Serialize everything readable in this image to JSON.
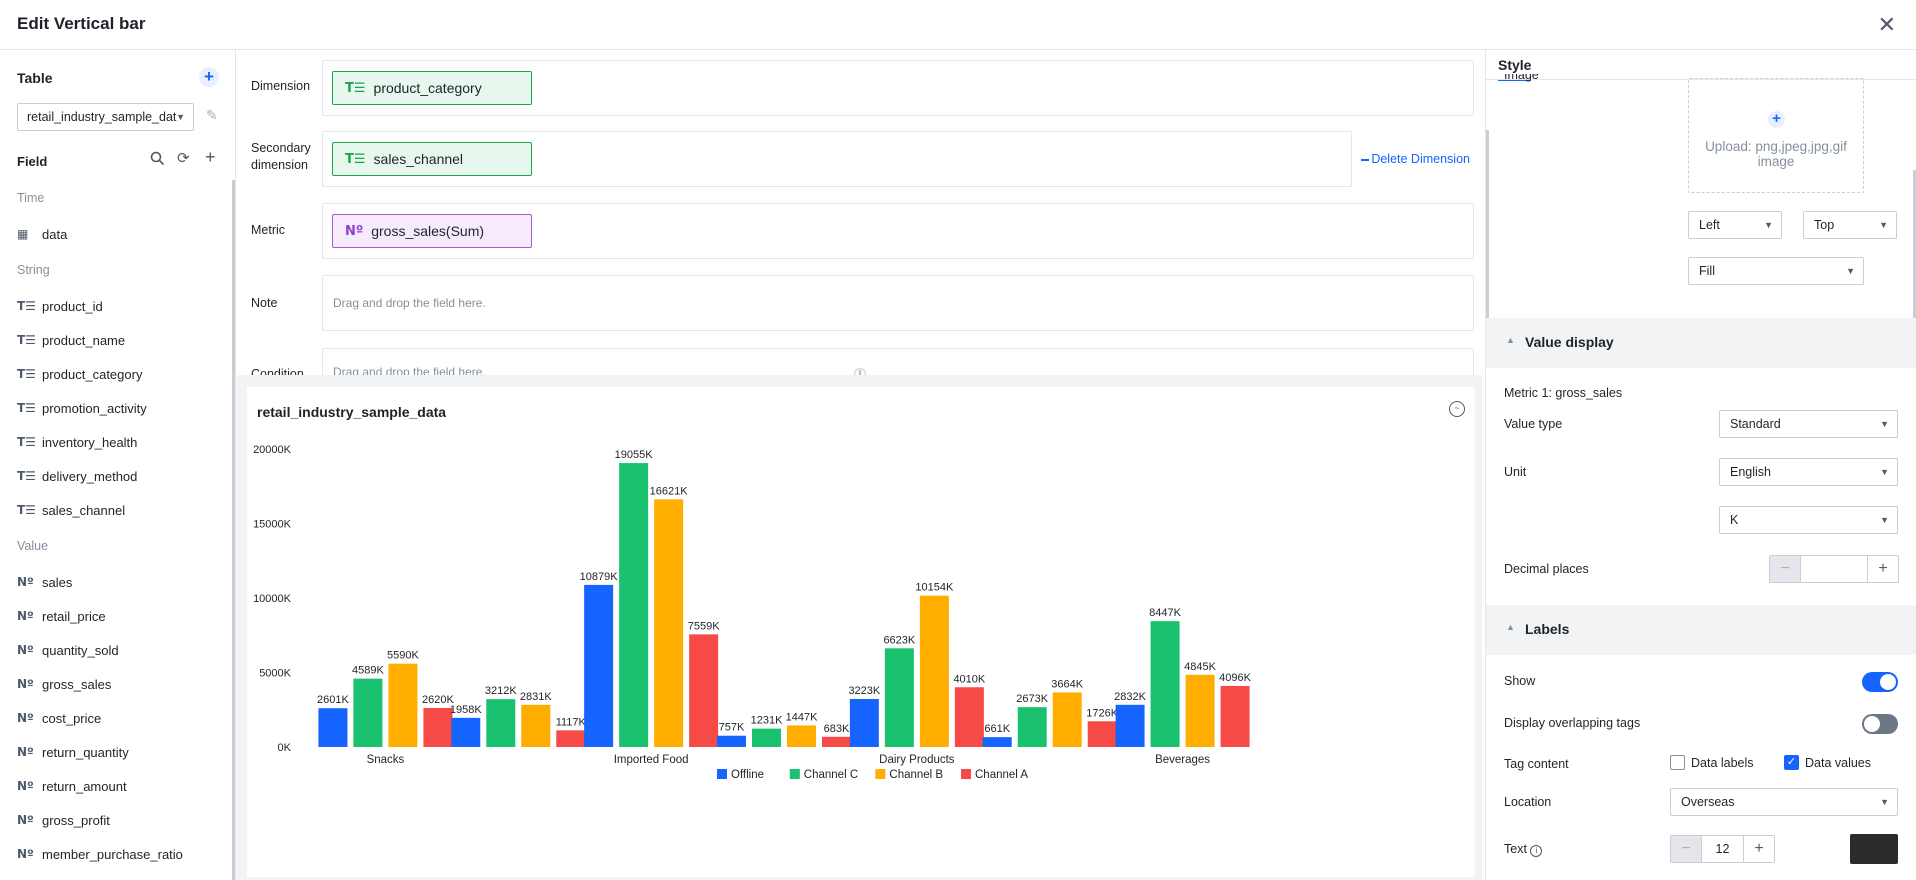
{
  "header": {
    "title": "Edit Vertical bar",
    "close_icon": "close-icon"
  },
  "left": {
    "table_title": "Table",
    "table_select": "retail_industry_sample_dat",
    "field_title": "Field",
    "groups": {
      "time": "Time",
      "string": "String",
      "value": "Value"
    },
    "time_fields": [
      "data"
    ],
    "string_fields": [
      "product_id",
      "product_name",
      "product_category",
      "promotion_activity",
      "inventory_health",
      "delivery_method",
      "sales_channel"
    ],
    "value_fields": [
      "sales",
      "retail_price",
      "quantity_sold",
      "gross_sales",
      "cost_price",
      "return_quantity",
      "return_amount",
      "gross_profit",
      "member_purchase_ratio"
    ],
    "string_icon": "T☰",
    "value_icon": "Nº"
  },
  "config": {
    "dimension_label": "Dimension",
    "dimension_value": "product_category",
    "secondary_label_1": "Secondary",
    "secondary_label_2": "dimension",
    "secondary_value": "sales_channel",
    "delete_dimension": "Delete Dimension",
    "metric_label": "Metric",
    "metric_value": "gross_sales(Sum)",
    "note_label": "Note",
    "drop_placeholder": "Drag and drop the field here.",
    "condition_label": "Condition"
  },
  "chart_data": {
    "type": "bar",
    "title": "retail_industry_sample_data",
    "categories": [
      "Snacks",
      "",
      "Imported Food",
      "",
      "Dairy Products",
      "",
      "Beverages"
    ],
    "series": [
      {
        "name": "Offline",
        "color": "#1664ff",
        "values": [
          2601,
          1958,
          10879,
          757,
          3223,
          661,
          2832
        ]
      },
      {
        "name": "Channel C",
        "color": "#1ac26f",
        "values": [
          4589,
          3212,
          19055,
          1231,
          6623,
          2673,
          8447
        ]
      },
      {
        "name": "Channel B",
        "color": "#ffae00",
        "values": [
          5590,
          2831,
          16621,
          1447,
          10154,
          3664,
          4845
        ]
      },
      {
        "name": "Channel A",
        "color": "#f54a45",
        "values": [
          2620,
          1117,
          7559,
          683,
          4010,
          1726,
          4096
        ]
      }
    ],
    "value_labels": [
      [
        "2601K",
        "1958K",
        "10879K",
        "757K",
        "3223K",
        "661K",
        "2832K"
      ],
      [
        "4589K",
        "3212K",
        "19055K",
        "1231K",
        "6623K",
        "2673K",
        "8447K"
      ],
      [
        "5590K",
        "2831K",
        "16621K",
        "1447K",
        "10154K",
        "3664K",
        "4845K"
      ],
      [
        "2620K",
        "1117K",
        "7559K",
        "683K",
        "4010K",
        "1726K",
        "4096K"
      ]
    ],
    "yticks": [
      "0K",
      "5000K",
      "10000K",
      "15000K",
      "20000K"
    ],
    "ylim": [
      0,
      20000
    ],
    "legend_position": "bottom"
  },
  "right": {
    "tab": "Style",
    "image_label": "Image",
    "upload_text": "Upload: png,jpeg,jpg,gif image",
    "h_align": "Left",
    "v_align": "Top",
    "fit": "Fill",
    "value_display": "Value display",
    "metric_name": "Metric 1: gross_sales",
    "value_type_label": "Value type",
    "value_type": "Standard",
    "unit_label": "Unit",
    "unit": "English",
    "unit_scale": "K",
    "decimal_label": "Decimal places",
    "decimal_value": "",
    "labels_title": "Labels",
    "show_label": "Show",
    "show_on": true,
    "overlap_label": "Display overlapping tags",
    "overlap_on": false,
    "tag_content_label": "Tag content",
    "data_labels": "Data labels",
    "data_values": "Data values",
    "location_label": "Location",
    "location": "Overseas",
    "text_label": "Text",
    "text_size": "12",
    "text_color": "#2b2b2b",
    "accent_color": "#1664ff"
  }
}
